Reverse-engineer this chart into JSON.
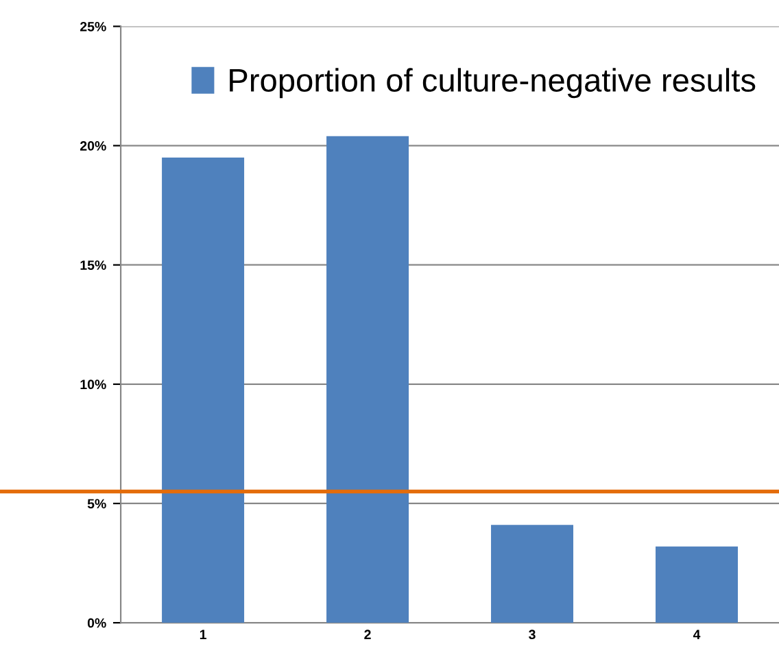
{
  "chart_data": {
    "type": "bar",
    "categories": [
      "1",
      "2",
      "3",
      "4"
    ],
    "series": [
      {
        "name": "Proportion of culture-negative results",
        "color": "#4f81bd",
        "values": [
          19.5,
          20.4,
          4.1,
          3.2
        ]
      }
    ],
    "ylim": [
      0,
      25
    ],
    "yticks": [
      {
        "value": 0,
        "label": "0%"
      },
      {
        "value": 5,
        "label": "5%"
      },
      {
        "value": 10,
        "label": "10%"
      },
      {
        "value": 15,
        "label": "15%"
      },
      {
        "value": 20,
        "label": "20%"
      },
      {
        "value": 25,
        "label": "25%"
      }
    ],
    "ref_lines": [
      {
        "axis": "y",
        "value": 5.5,
        "color": "#e46c0a"
      }
    ],
    "grid": "y",
    "legend": "top right"
  }
}
